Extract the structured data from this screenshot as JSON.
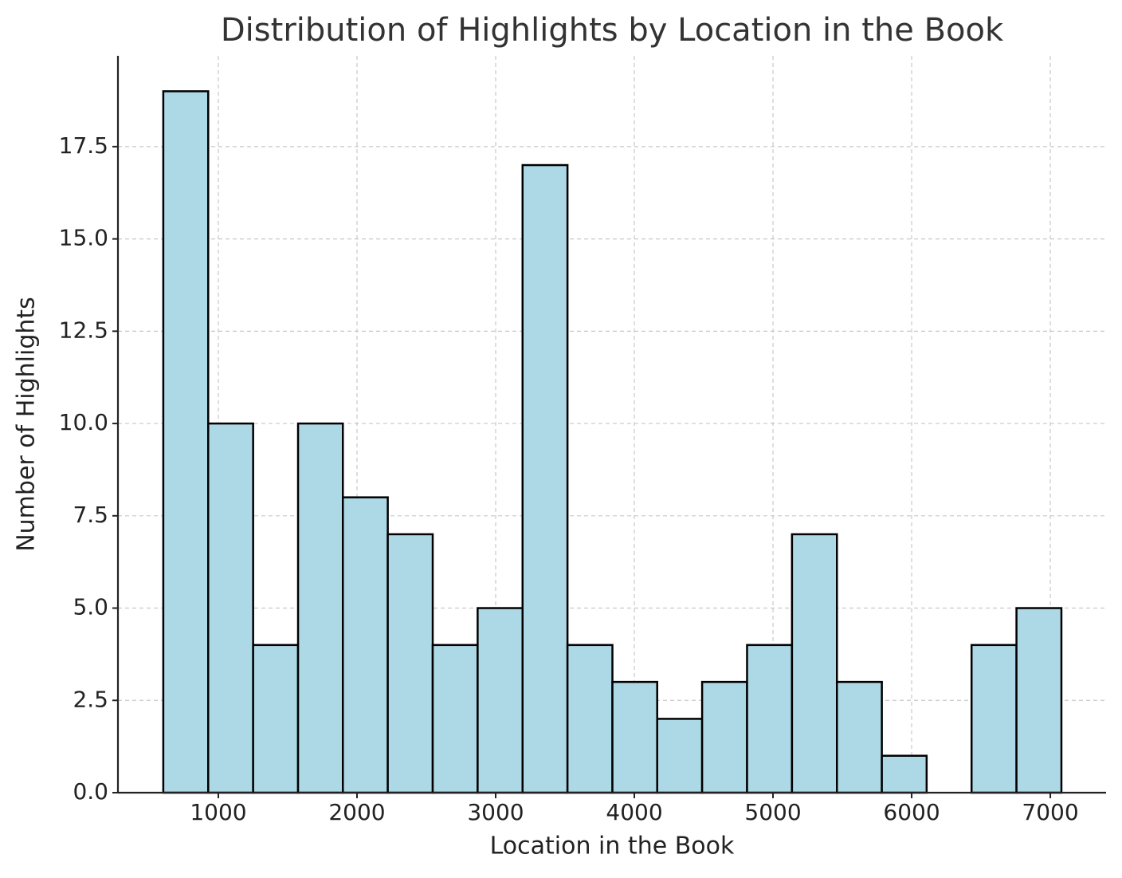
{
  "chart_data": {
    "type": "histogram",
    "title": "Distribution of Highlights by Location in the Book",
    "x_label": "Location in the Book",
    "y_label": "Number of Highlights",
    "bins": [
      603,
      927,
      1251,
      1575,
      1898,
      2222,
      2546,
      2870,
      3194,
      3518,
      3842,
      4165,
      4489,
      4813,
      5137,
      5461,
      5785,
      6108,
      6432,
      6756,
      7080
    ],
    "values": [
      19,
      10,
      4,
      10,
      8,
      7,
      4,
      5,
      17,
      4,
      3,
      2,
      3,
      4,
      7,
      3,
      1,
      0,
      4,
      5
    ],
    "color": "#add8e6",
    "edge_color": "#000000",
    "xlim": [
      276,
      7402
    ],
    "ylim": [
      0,
      19.96
    ],
    "xticks": [
      1000,
      2000,
      3000,
      4000,
      5000,
      6000,
      7000
    ],
    "yticks": [
      {
        "value": 0,
        "label": "0.0"
      },
      2.5,
      {
        "value": 5,
        "label": "5.0"
      },
      7.5,
      {
        "value": 10,
        "label": "10.0"
      },
      12.5,
      {
        "value": 15,
        "label": "15.0"
      },
      17.5
    ],
    "grid": true
  }
}
